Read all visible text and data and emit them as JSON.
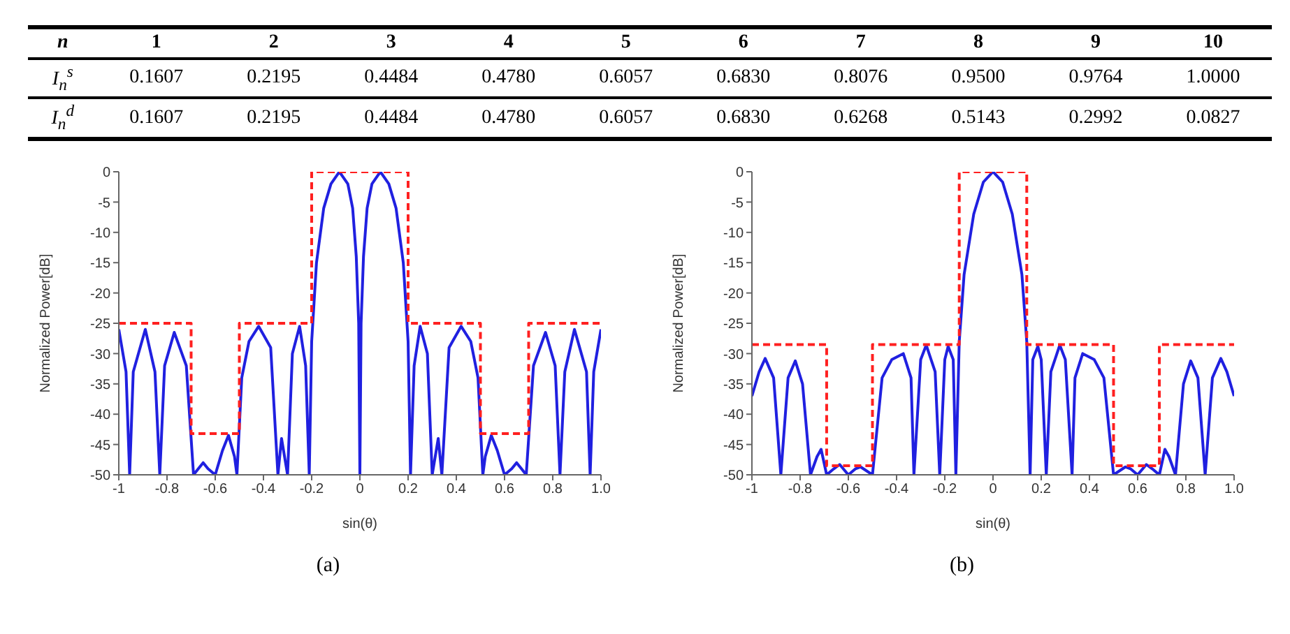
{
  "chart_data": [
    {
      "type": "heatmap",
      "xlabel": "n",
      "categories": [
        "1",
        "2",
        "3",
        "4",
        "5",
        "6",
        "7",
        "8",
        "9",
        "10"
      ],
      "y_categories": [
        "I$_{n}$$^{s}$",
        "I$_{n}$$^{d}$"
      ],
      "cells": [
        [
          0.1607,
          0.2195,
          0.4484,
          0.478,
          0.6057,
          0.683,
          0.8076,
          0.95,
          0.9764,
          1.0
        ],
        [
          0.1607,
          0.2195,
          0.4484,
          0.478,
          0.6057,
          0.683,
          0.6268,
          0.5143,
          0.2992,
          0.0827
        ]
      ],
      "cell_labels": [
        [
          "0.1607",
          "0.2195",
          "0.4484",
          "0.4780",
          "0.6057",
          "0.6830",
          "0.8076",
          "0.9500",
          "0.9764",
          "1.0000"
        ],
        [
          "0.1607",
          "0.2195",
          "0.4484",
          "0.4780",
          "0.6057",
          "0.6830",
          "0.6268",
          "0.5143",
          "0.2992",
          "0.0827"
        ]
      ]
    },
    {
      "type": "line",
      "title": "(a)",
      "xlabel": "sin(θ)",
      "ylabel": "Normalized Power[dB]",
      "xlim": [
        -1,
        1
      ],
      "ylim": [
        -50,
        0
      ],
      "xticks": [
        -1,
        -0.8,
        -0.6,
        -0.4,
        -0.2,
        0,
        0.2,
        0.4,
        0.6,
        0.8,
        {
          "value": 1,
          "label": "1.0"
        }
      ],
      "yticks": [
        -50,
        -45,
        -40,
        -35,
        -30,
        -25,
        -20,
        -15,
        -10,
        -5,
        0
      ],
      "marker": "none",
      "series": [
        {
          "color": "#2020e0",
          "line_style": "solid",
          "x": [
            -1,
            -0.97,
            -0.955,
            -0.94,
            -0.89,
            -0.85,
            -0.83,
            -0.81,
            -0.77,
            -0.72,
            -0.69,
            -0.67,
            -0.65,
            -0.63,
            -0.6,
            -0.57,
            -0.545,
            -0.52,
            -0.51,
            -0.49,
            -0.46,
            -0.42,
            -0.37,
            -0.34,
            -0.325,
            -0.3,
            -0.28,
            -0.25,
            -0.225,
            -0.21,
            -0.2,
            -0.18,
            -0.15,
            -0.12,
            -0.085,
            -0.05,
            -0.03,
            -0.015,
            -0.005,
            0,
            0.005,
            0.015,
            0.03,
            0.05,
            0.085,
            0.12,
            0.15,
            0.18,
            0.2,
            0.21,
            0.225,
            0.25,
            0.28,
            0.3,
            0.325,
            0.34,
            0.37,
            0.42,
            0.46,
            0.49,
            0.51,
            0.52,
            0.545,
            0.57,
            0.6,
            0.63,
            0.65,
            0.67,
            0.69,
            0.72,
            0.77,
            0.81,
            0.83,
            0.85,
            0.89,
            0.94,
            0.955,
            0.97,
            1
          ],
          "values": [
            -26,
            -33,
            -50,
            -33,
            -26,
            -33,
            -50,
            -32,
            -26.5,
            -32,
            -50,
            -49,
            -48,
            -49,
            -50,
            -46,
            -43.5,
            -47,
            -50,
            -34,
            -28,
            -25.5,
            -29,
            -50,
            -44,
            -50,
            -30,
            -25.5,
            -32,
            -50,
            -28,
            -15,
            -6,
            -2,
            0,
            -2,
            -6,
            -14,
            -25,
            -50,
            -25,
            -14,
            -6,
            -2,
            0,
            -2,
            -6,
            -15,
            -28,
            -50,
            -32,
            -25.5,
            -30,
            -50,
            -44,
            -50,
            -29,
            -25.5,
            -28,
            -34,
            -50,
            -47,
            -43.5,
            -46,
            -50,
            -49,
            -48,
            -49,
            -50,
            -32,
            -26.5,
            -32,
            -50,
            -33,
            -26,
            -33,
            -50,
            -33,
            -26
          ]
        },
        {
          "color": "#ff2020",
          "line_style": "dashed",
          "x": [
            -1,
            -0.7,
            -0.7,
            -0.5,
            -0.5,
            -0.2,
            -0.2,
            0.2,
            0.2,
            0.5,
            0.5,
            0.7,
            0.7,
            1
          ],
          "values": [
            -25,
            -25,
            -43.2,
            -43.2,
            -25,
            -25,
            0,
            0,
            -25,
            -25,
            -43.2,
            -43.2,
            -25,
            -25
          ]
        }
      ]
    },
    {
      "type": "line",
      "title": "(b)",
      "xlabel": "sin(θ)",
      "ylabel": "Normalized Power[dB]",
      "xlim": [
        -1,
        1
      ],
      "ylim": [
        -50,
        0
      ],
      "xticks": [
        -1,
        -0.8,
        -0.6,
        -0.4,
        -0.2,
        0,
        0.2,
        0.4,
        0.6,
        0.8,
        {
          "value": 1,
          "label": "1.0"
        }
      ],
      "yticks": [
        -50,
        -45,
        -40,
        -35,
        -30,
        -25,
        -20,
        -15,
        -10,
        -5,
        0
      ],
      "marker": "none",
      "series": [
        {
          "color": "#2020e0",
          "line_style": "solid",
          "x": [
            -1,
            -0.97,
            -0.945,
            -0.91,
            -0.88,
            -0.85,
            -0.82,
            -0.79,
            -0.757,
            -0.73,
            -0.713,
            -0.69,
            -0.66,
            -0.636,
            -0.6,
            -0.57,
            -0.549,
            -0.5,
            -0.46,
            -0.42,
            -0.372,
            -0.34,
            -0.328,
            -0.3,
            -0.277,
            -0.24,
            -0.221,
            -0.2,
            -0.186,
            -0.165,
            -0.154,
            -0.14,
            -0.12,
            -0.08,
            -0.04,
            0,
            0.04,
            0.08,
            0.12,
            0.14,
            0.154,
            0.165,
            0.186,
            0.2,
            0.221,
            0.24,
            0.277,
            0.3,
            0.328,
            0.34,
            0.372,
            0.42,
            0.46,
            0.5,
            0.549,
            0.57,
            0.6,
            0.636,
            0.66,
            0.69,
            0.713,
            0.73,
            0.757,
            0.79,
            0.82,
            0.85,
            0.88,
            0.91,
            0.945,
            0.97,
            1
          ],
          "values": [
            -37,
            -33,
            -30.8,
            -34,
            -50,
            -34,
            -31.2,
            -35,
            -50,
            -47,
            -45.8,
            -50,
            -49,
            -48.3,
            -50,
            -49,
            -48.7,
            -50,
            -34,
            -31,
            -30,
            -34,
            -50,
            -31,
            -28.6,
            -33,
            -50,
            -31,
            -28.8,
            -31,
            -50,
            -28,
            -17,
            -7,
            -1.7,
            0,
            -1.7,
            -7,
            -17,
            -28,
            -50,
            -31,
            -28.8,
            -31,
            -50,
            -33,
            -28.6,
            -31,
            -50,
            -34,
            -30,
            -31,
            -34,
            -50,
            -48.7,
            -49,
            -50,
            -48.3,
            -49,
            -50,
            -45.8,
            -47,
            -50,
            -35,
            -31.2,
            -34,
            -50,
            -34,
            -30.8,
            -33,
            -37
          ]
        },
        {
          "color": "#ff2020",
          "line_style": "dashed",
          "x": [
            -1,
            -0.69,
            -0.69,
            -0.5,
            -0.5,
            -0.14,
            -0.14,
            0.14,
            0.14,
            0.5,
            0.5,
            0.69,
            0.69,
            1
          ],
          "values": [
            -28.5,
            -28.5,
            -48.5,
            -48.5,
            -28.5,
            -28.5,
            0,
            0,
            -28.5,
            -28.5,
            -48.5,
            -48.5,
            -28.5,
            -28.5
          ]
        }
      ]
    }
  ]
}
